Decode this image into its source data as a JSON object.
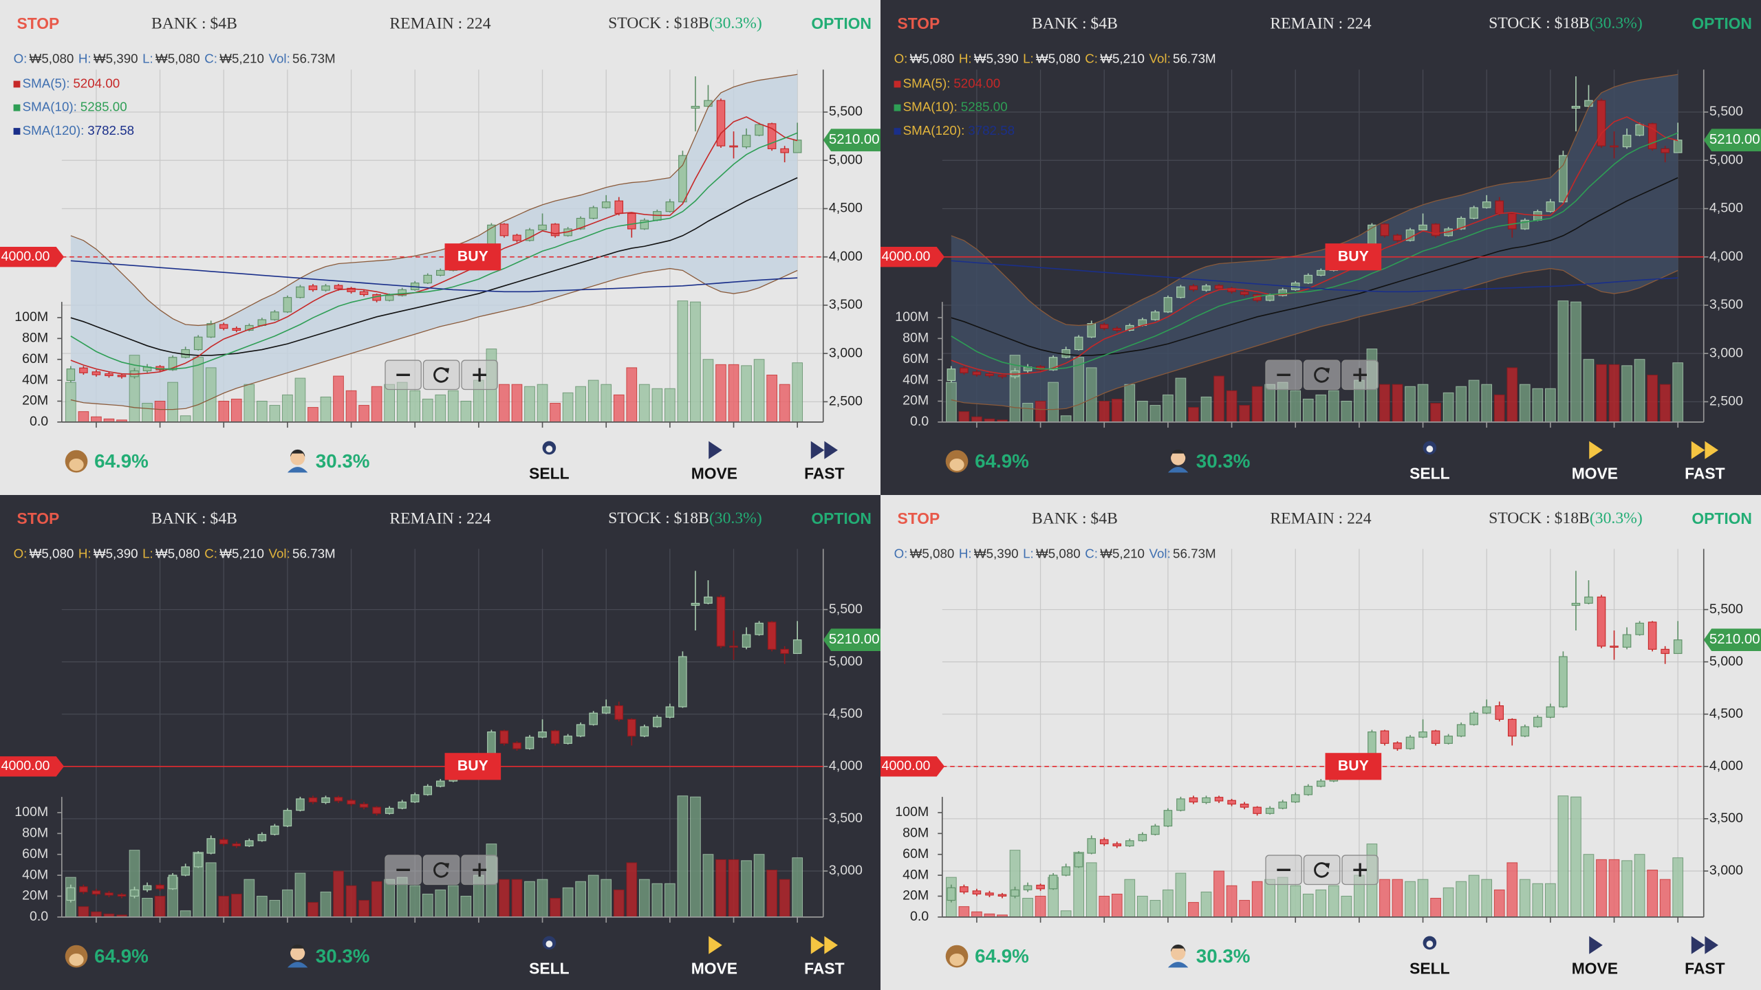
{
  "header": {
    "stop": "STOP",
    "bank": "BANK : $4B",
    "remain": "REMAIN : 224",
    "stock": "STOCK : $18B",
    "stock_pct": "(30.3%)",
    "option": "OPTION"
  },
  "ohlc": [
    {
      "label": "O:",
      "value": "₩5,080"
    },
    {
      "label": "H:",
      "value": "₩5,390"
    },
    {
      "label": "L:",
      "value": "₩5,080"
    },
    {
      "label": "C:",
      "value": "₩5,210"
    },
    {
      "label": "Vol:",
      "value": "56.73M"
    }
  ],
  "footer": {
    "monkey_pct": "64.9%",
    "player_pct": "30.3%",
    "sell": "SELL",
    "move": "MOVE",
    "fast": "FAST"
  },
  "themes": {
    "light": {
      "background": "#e6e6e6",
      "grid": "#c9c9c9",
      "axis": "#555555",
      "up_fill": "#9ec5a5",
      "up_stroke": "#5f9068",
      "down_fill": "#e9656b",
      "down_stroke": "#c62828",
      "band_fill": "#c4d2df"
    },
    "dark": {
      "background": "#2f3039",
      "grid": "#474953",
      "axis": "#9a9a9a",
      "up_fill": "#6f957a",
      "up_stroke": "#a9cdb0",
      "down_fill": "#b3262b",
      "down_stroke": "#8e1a1e",
      "band_fill": "#3f4c63"
    }
  },
  "chart_data": {
    "type": "candlestick",
    "open": [
      2720,
      2850,
      2810,
      2790,
      2775,
      2760,
      2820,
      2865,
      2830,
      2960,
      3040,
      3170,
      3300,
      3260,
      3240,
      3290,
      3350,
      3430,
      3580,
      3700,
      3655,
      3705,
      3675,
      3640,
      3610,
      3550,
      3600,
      3660,
      3730,
      3810,
      3860,
      3900,
      3960,
      4030,
      4340,
      4225,
      4170,
      4280,
      4340,
      4220,
      4290,
      4400,
      4510,
      4580,
      4450,
      4290,
      4380,
      4470,
      4570,
      5540,
      5560,
      5620,
      5150,
      5140,
      5260,
      5380,
      5120,
      5080
    ],
    "high": [
      2870,
      2870,
      2830,
      2810,
      2790,
      2850,
      2890,
      2880,
      2980,
      3070,
      3190,
      3340,
      3320,
      3280,
      3310,
      3370,
      3450,
      3600,
      3710,
      3720,
      3720,
      3720,
      3690,
      3660,
      3620,
      3620,
      3680,
      3750,
      3830,
      3880,
      3920,
      3980,
      4050,
      4350,
      4350,
      4240,
      4300,
      4450,
      4350,
      4310,
      4420,
      4530,
      4640,
      4620,
      4460,
      4400,
      4490,
      4600,
      5100,
      5870,
      5780,
      5640,
      5300,
      5330,
      5390,
      5390,
      5150,
      5390
    ],
    "low": [
      2700,
      2780,
      2760,
      2750,
      2740,
      2740,
      2800,
      2810,
      2820,
      2950,
      3030,
      3160,
      3240,
      3220,
      3230,
      3280,
      3340,
      3420,
      3570,
      3640,
      3640,
      3650,
      3620,
      3590,
      3530,
      3540,
      3590,
      3650,
      3720,
      3800,
      3850,
      3890,
      3950,
      4020,
      4200,
      4150,
      4160,
      4270,
      4200,
      4210,
      4280,
      4390,
      4500,
      4430,
      4200,
      4280,
      4370,
      4460,
      4560,
      5300,
      5550,
      5130,
      5020,
      5120,
      5250,
      5100,
      4980,
      5080
    ],
    "close": [
      2840,
      2800,
      2780,
      2770,
      2760,
      2820,
      2860,
      2830,
      2960,
      3040,
      3170,
      3310,
      3260,
      3240,
      3290,
      3350,
      3430,
      3580,
      3690,
      3660,
      3700,
      3670,
      3640,
      3610,
      3550,
      3600,
      3660,
      3730,
      3810,
      3860,
      3900,
      3960,
      4030,
      4330,
      4220,
      4170,
      4280,
      4330,
      4220,
      4290,
      4400,
      4510,
      4570,
      4450,
      4290,
      4380,
      4470,
      4570,
      5050,
      5560,
      5620,
      5150,
      5140,
      5260,
      5370,
      5120,
      5080,
      5210
    ],
    "volume": [
      38,
      10,
      5,
      3,
      2,
      64,
      18,
      20,
      38,
      6,
      62,
      52,
      20,
      22,
      36,
      20,
      16,
      26,
      42,
      14,
      24,
      44,
      30,
      16,
      34,
      36,
      38,
      30,
      22,
      26,
      30,
      20,
      40,
      70,
      36,
      36,
      34,
      36,
      18,
      28,
      34,
      40,
      36,
      26,
      52,
      36,
      32,
      32,
      116,
      115,
      60,
      55,
      55,
      54,
      60,
      45,
      36,
      56.73
    ],
    "volume_ylim": [
      0,
      115
    ],
    "volume_ticks": [
      {
        "value": 0,
        "label": "0.0"
      },
      {
        "value": 20,
        "label": "20M"
      },
      {
        "value": 40,
        "label": "40M"
      },
      {
        "value": 60,
        "label": "60M"
      },
      {
        "value": 80,
        "label": "80M"
      },
      {
        "value": 100,
        "label": "100M"
      }
    ],
    "lines": [
      {
        "name": "SMA(5):",
        "legend_label": "5204.00",
        "color": "#c62828",
        "values": [
          2930,
          2880,
          2840,
          2810,
          2790,
          2785,
          2795,
          2810,
          2850,
          2900,
          2970,
          3070,
          3150,
          3200,
          3250,
          3290,
          3320,
          3380,
          3460,
          3540,
          3610,
          3660,
          3670,
          3660,
          3640,
          3610,
          3610,
          3630,
          3670,
          3730,
          3790,
          3850,
          3910,
          4020,
          4090,
          4140,
          4200,
          4270,
          4240,
          4260,
          4300,
          4350,
          4400,
          4450,
          4460,
          4440,
          4430,
          4430,
          4550,
          4810,
          5050,
          5280,
          5400,
          5450,
          5380,
          5330,
          5240,
          5204
        ]
      },
      {
        "name": "SMA(10):",
        "legend_label": "5285.00",
        "color": "#2e9e55",
        "values": [
          3180,
          3100,
          3020,
          2960,
          2910,
          2880,
          2860,
          2840,
          2840,
          2850,
          2880,
          2930,
          2980,
          3030,
          3080,
          3130,
          3180,
          3240,
          3300,
          3370,
          3430,
          3490,
          3530,
          3560,
          3590,
          3610,
          3620,
          3630,
          3640,
          3660,
          3690,
          3730,
          3770,
          3830,
          3880,
          3940,
          4000,
          4060,
          4100,
          4150,
          4190,
          4240,
          4290,
          4320,
          4340,
          4360,
          4380,
          4400,
          4470,
          4580,
          4720,
          4840,
          4960,
          5060,
          5130,
          5180,
          5230,
          5285
        ]
      },
      {
        "name": "SMA(120):",
        "legend_label": "3782.58",
        "color": "#1a2f8a",
        "values": [
          3960,
          3950,
          3940,
          3930,
          3920,
          3910,
          3900,
          3890,
          3880,
          3870,
          3860,
          3850,
          3840,
          3830,
          3820,
          3810,
          3800,
          3790,
          3780,
          3770,
          3760,
          3750,
          3740,
          3730,
          3720,
          3710,
          3700,
          3690,
          3680,
          3670,
          3660,
          3655,
          3650,
          3645,
          3640,
          3640,
          3640,
          3645,
          3650,
          3655,
          3660,
          3665,
          3670,
          3675,
          3680,
          3685,
          3690,
          3695,
          3700,
          3710,
          3720,
          3730,
          3740,
          3750,
          3760,
          3768,
          3776,
          3782.58
        ]
      }
    ],
    "bollinger": {
      "middle_color": "#111111",
      "band_color": "#8a5a3a",
      "middle": [
        3370,
        3330,
        3280,
        3230,
        3180,
        3130,
        3080,
        3040,
        3010,
        2990,
        2980,
        2980,
        2990,
        3000,
        3020,
        3040,
        3070,
        3100,
        3140,
        3180,
        3220,
        3260,
        3300,
        3340,
        3380,
        3410,
        3440,
        3470,
        3500,
        3530,
        3560,
        3590,
        3620,
        3660,
        3700,
        3740,
        3780,
        3820,
        3860,
        3900,
        3940,
        3980,
        4020,
        4060,
        4090,
        4110,
        4140,
        4170,
        4220,
        4290,
        4370,
        4440,
        4510,
        4580,
        4640,
        4700,
        4760,
        4820
      ],
      "upper": [
        4220,
        4170,
        4080,
        3960,
        3830,
        3700,
        3560,
        3450,
        3360,
        3300,
        3290,
        3300,
        3350,
        3420,
        3490,
        3560,
        3620,
        3700,
        3780,
        3850,
        3900,
        3930,
        3940,
        3950,
        3960,
        3970,
        3990,
        4010,
        4040,
        4070,
        4110,
        4160,
        4220,
        4300,
        4370,
        4430,
        4490,
        4540,
        4580,
        4610,
        4640,
        4680,
        4720,
        4750,
        4770,
        4780,
        4800,
        4820,
        4950,
        5250,
        5550,
        5700,
        5760,
        5800,
        5830,
        5850,
        5870,
        5890
      ],
      "lower": [
        2520,
        2490,
        2480,
        2470,
        2460,
        2440,
        2430,
        2420,
        2420,
        2430,
        2470,
        2530,
        2590,
        2640,
        2680,
        2720,
        2760,
        2800,
        2840,
        2880,
        2920,
        2960,
        3000,
        3040,
        3080,
        3120,
        3160,
        3200,
        3240,
        3280,
        3310,
        3340,
        3380,
        3410,
        3440,
        3470,
        3500,
        3540,
        3580,
        3620,
        3660,
        3700,
        3740,
        3780,
        3810,
        3840,
        3860,
        3880,
        3860,
        3780,
        3700,
        3640,
        3620,
        3640,
        3680,
        3740,
        3800,
        3860
      ]
    },
    "current_price": {
      "value": 5210,
      "label": "5210.00",
      "color": "#3c9c4f"
    },
    "buy_level": {
      "value": 4000,
      "label": "4000.00",
      "color": "#e32a2f"
    },
    "buy_text": "BUY"
  },
  "panels": [
    {
      "theme": "light",
      "indicators": true,
      "ylim": [
        2290,
        5940
      ],
      "yticks": [
        {
          "value": 2500,
          "label": "2,500"
        },
        {
          "value": 3000,
          "label": "3,000"
        },
        {
          "value": 3500,
          "label": "3,500"
        },
        {
          "value": 4000,
          "label": "4,000"
        },
        {
          "value": 4500,
          "label": "4,500"
        },
        {
          "value": 5000,
          "label": "5,000"
        },
        {
          "value": 5500,
          "label": "5,500"
        }
      ]
    },
    {
      "theme": "dark",
      "indicators": true,
      "ylim": [
        2290,
        5940
      ],
      "yticks": [
        {
          "value": 2500,
          "label": "2,500"
        },
        {
          "value": 3000,
          "label": "3,000"
        },
        {
          "value": 3500,
          "label": "3,500"
        },
        {
          "value": 4000,
          "label": "4,000"
        },
        {
          "value": 4500,
          "label": "4,500"
        },
        {
          "value": 5000,
          "label": "5,000"
        },
        {
          "value": 5500,
          "label": "5,500"
        }
      ]
    },
    {
      "theme": "dark",
      "indicators": false,
      "ylim": [
        2560,
        6080
      ],
      "yticks": [
        {
          "value": 3000,
          "label": "3,000"
        },
        {
          "value": 3500,
          "label": "3,500"
        },
        {
          "value": 4000,
          "label": "4,000"
        },
        {
          "value": 4500,
          "label": "4,500"
        },
        {
          "value": 5000,
          "label": "5,000"
        },
        {
          "value": 5500,
          "label": "5,500"
        }
      ]
    },
    {
      "theme": "light",
      "indicators": false,
      "ylim": [
        2560,
        6080
      ],
      "yticks": [
        {
          "value": 3000,
          "label": "3,000"
        },
        {
          "value": 3500,
          "label": "3,500"
        },
        {
          "value": 4000,
          "label": "4,000"
        },
        {
          "value": 4500,
          "label": "4,500"
        },
        {
          "value": 5000,
          "label": "5,000"
        },
        {
          "value": 5500,
          "label": "5,500"
        }
      ]
    }
  ]
}
